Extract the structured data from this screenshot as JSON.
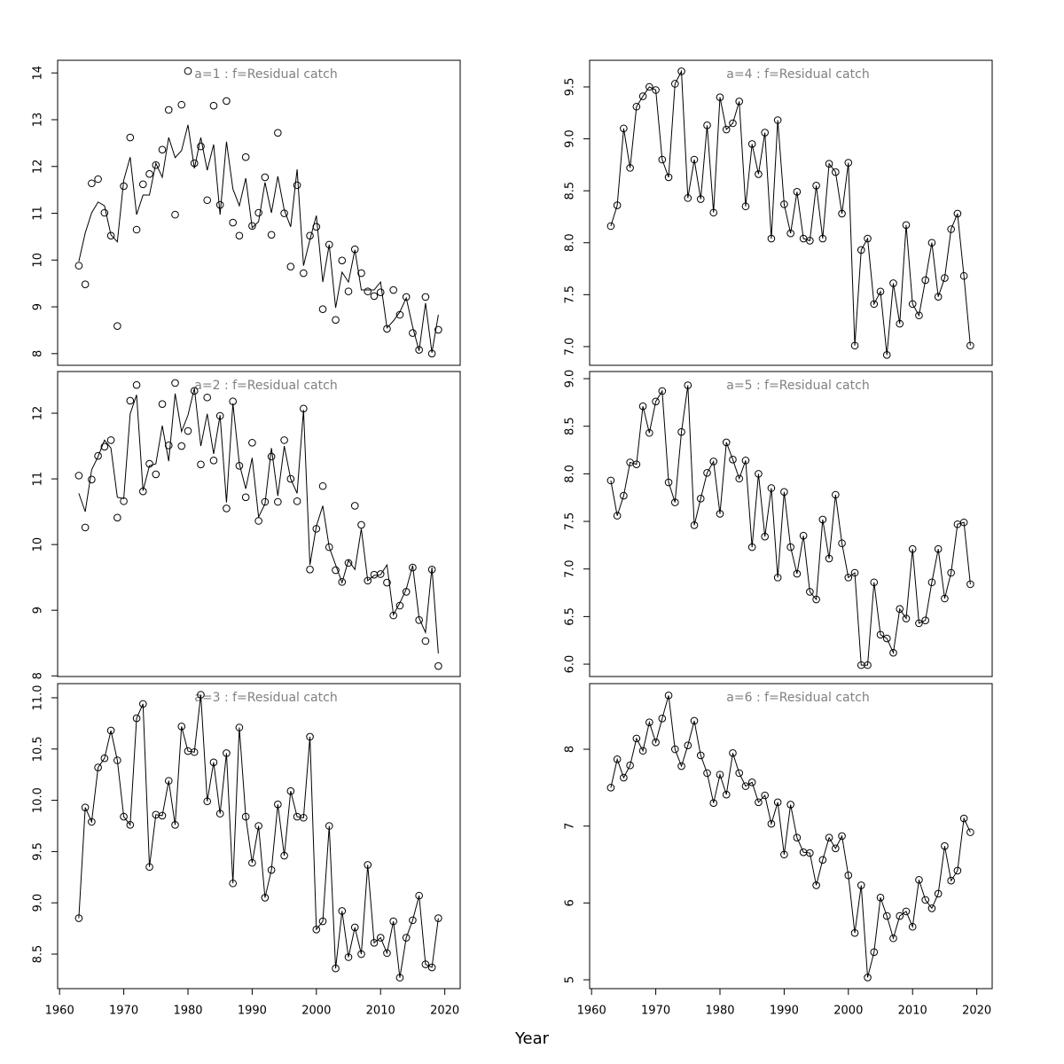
{
  "xlabel": "Year",
  "chart_data": [
    {
      "type": "line",
      "title": "a=1 : f=Residual catch",
      "x": [
        1963,
        1964,
        1965,
        1966,
        1967,
        1968,
        1969,
        1970,
        1971,
        1972,
        1973,
        1974,
        1975,
        1976,
        1977,
        1978,
        1979,
        1980,
        1981,
        1982,
        1983,
        1984,
        1985,
        1986,
        1987,
        1988,
        1989,
        1990,
        1991,
        1992,
        1993,
        1994,
        1995,
        1996,
        1997,
        1998,
        1999,
        2000,
        2001,
        2002,
        2003,
        2004,
        2005,
        2006,
        2007,
        2008,
        2009,
        2010,
        2011,
        2012,
        2013,
        2014,
        2015,
        2016,
        2017,
        2018,
        2019
      ],
      "xlim": [
        1959.7,
        2022.4
      ],
      "ylim": [
        7.75,
        14.27
      ],
      "yticks": [
        8,
        9,
        10,
        11,
        12,
        13,
        14
      ],
      "series": [
        {
          "color": "#000000",
          "points": true,
          "line": false,
          "values": [
            9.88,
            9.48,
            11.64,
            11.73,
            11.01,
            10.52,
            8.59,
            11.58,
            12.62,
            10.65,
            11.62,
            11.84,
            12.03,
            12.36,
            13.21,
            10.97,
            13.32,
            14.04,
            12.07,
            12.43,
            11.28,
            13.3,
            11.18,
            13.4,
            10.8,
            10.52,
            12.2,
            10.73,
            11.01,
            11.77,
            10.54,
            12.72,
            11.0,
            9.86,
            11.6,
            9.72,
            10.52,
            10.71,
            8.95,
            10.33,
            8.72,
            9.99,
            9.33,
            10.23,
            9.72,
            9.33,
            9.23,
            9.31,
            8.53,
            9.36,
            8.83,
            9.21,
            8.44,
            8.08,
            9.21,
            8.0,
            8.51
          ]
        },
        {
          "color": "#000000",
          "points": false,
          "line": true,
          "values": [
            9.97,
            10.58,
            11.01,
            11.24,
            11.16,
            10.54,
            10.39,
            11.71,
            12.2,
            10.97,
            11.39,
            11.39,
            12.07,
            11.77,
            12.62,
            12.19,
            12.34,
            12.89,
            11.96,
            12.62,
            11.92,
            12.47,
            10.97,
            12.53,
            11.52,
            11.16,
            11.75,
            10.69,
            10.82,
            11.66,
            11.01,
            11.79,
            11.07,
            10.71,
            11.94,
            9.88,
            10.44,
            10.95,
            9.53,
            10.33,
            8.98,
            9.74,
            9.53,
            10.22,
            9.36,
            9.36,
            9.36,
            9.53,
            8.55,
            8.7,
            8.89,
            9.19,
            8.57,
            8.06,
            9.08,
            8.02,
            8.83
          ]
        }
      ]
    },
    {
      "type": "line",
      "title": "a=2 : f=Residual catch",
      "x": [
        1963,
        1964,
        1965,
        1966,
        1967,
        1968,
        1969,
        1970,
        1971,
        1972,
        1973,
        1974,
        1975,
        1976,
        1977,
        1978,
        1979,
        1980,
        1981,
        1982,
        1983,
        1984,
        1985,
        1986,
        1987,
        1988,
        1989,
        1990,
        1991,
        1992,
        1993,
        1994,
        1995,
        1996,
        1997,
        1998,
        1999,
        2000,
        2001,
        2002,
        2003,
        2004,
        2005,
        2006,
        2007,
        2008,
        2009,
        2010,
        2011,
        2012,
        2013,
        2014,
        2015,
        2016,
        2017,
        2018,
        2019
      ],
      "xlim": [
        1959.7,
        2022.4
      ],
      "ylim": [
        7.99,
        12.635
      ],
      "yticks": [
        8,
        9,
        10,
        11,
        12
      ],
      "series": [
        {
          "color": "#000000",
          "points": true,
          "line": false,
          "values": [
            11.05,
            10.26,
            10.99,
            11.35,
            11.49,
            11.59,
            10.41,
            10.66,
            12.19,
            12.43,
            10.81,
            11.23,
            11.07,
            12.14,
            11.51,
            12.46,
            11.5,
            11.73,
            12.34,
            11.22,
            12.24,
            11.28,
            11.96,
            10.55,
            12.18,
            11.2,
            10.72,
            11.55,
            10.36,
            10.65,
            11.34,
            10.65,
            11.59,
            11.0,
            10.66,
            12.07,
            9.62,
            10.24,
            10.89,
            9.96,
            9.61,
            9.43,
            9.72,
            10.59,
            10.3,
            9.45,
            9.54,
            9.55,
            9.42,
            8.92,
            9.07,
            9.28,
            9.65,
            8.85,
            8.53,
            9.62,
            8.15
          ]
        },
        {
          "color": "#000000",
          "points": false,
          "line": true,
          "values": [
            10.78,
            10.5,
            11.14,
            11.34,
            11.59,
            11.47,
            10.72,
            10.7,
            11.99,
            12.28,
            10.82,
            11.2,
            11.23,
            11.81,
            11.27,
            12.3,
            11.72,
            11.97,
            12.38,
            11.5,
            11.99,
            11.38,
            11.97,
            10.64,
            12.15,
            11.23,
            10.85,
            11.32,
            10.42,
            10.62,
            11.47,
            10.74,
            11.5,
            11.0,
            10.78,
            12.05,
            9.69,
            10.28,
            10.59,
            9.96,
            9.69,
            9.42,
            9.76,
            9.62,
            10.24,
            9.45,
            9.53,
            9.54,
            9.69,
            8.93,
            9.11,
            9.32,
            9.68,
            8.88,
            8.66,
            9.65,
            8.34
          ]
        }
      ]
    },
    {
      "type": "line",
      "title": "a=3 : f=Residual catch",
      "x": [
        1963,
        1964,
        1965,
        1966,
        1967,
        1968,
        1969,
        1970,
        1971,
        1972,
        1973,
        1974,
        1975,
        1976,
        1977,
        1978,
        1979,
        1980,
        1981,
        1982,
        1983,
        1984,
        1985,
        1986,
        1987,
        1988,
        1989,
        1990,
        1991,
        1992,
        1993,
        1994,
        1995,
        1996,
        1997,
        1998,
        1999,
        2000,
        2001,
        2002,
        2003,
        2004,
        2005,
        2006,
        2007,
        2008,
        2009,
        2010,
        2011,
        2012,
        2013,
        2014,
        2015,
        2016,
        2017,
        2018,
        2019
      ],
      "xlim": [
        1959.7,
        2022.4
      ],
      "xticks": [
        1960,
        1970,
        1980,
        1990,
        2000,
        2010,
        2020
      ],
      "ylim": [
        8.163,
        11.138
      ],
      "yticks": [
        8.5,
        {
          "value": 9,
          "label": "9.0"
        },
        9.5,
        {
          "value": 10,
          "label": "10.0"
        },
        10.5,
        {
          "value": 11,
          "label": "11.0"
        }
      ],
      "series": [
        {
          "color": "#000000",
          "points": true,
          "line": true,
          "values": [
            8.85,
            9.93,
            9.79,
            10.32,
            10.41,
            10.68,
            10.39,
            9.84,
            9.76,
            10.8,
            10.94,
            9.35,
            9.86,
            9.85,
            10.19,
            9.76,
            10.72,
            10.48,
            10.47,
            11.03,
            9.99,
            10.37,
            9.87,
            10.46,
            9.19,
            10.71,
            9.84,
            9.39,
            9.75,
            9.05,
            9.32,
            9.96,
            9.46,
            10.09,
            9.84,
            9.83,
            10.62,
            8.74,
            8.82,
            9.75,
            8.36,
            8.92,
            8.47,
            8.76,
            8.5,
            9.37,
            8.61,
            8.66,
            8.51,
            8.82,
            8.27,
            8.66,
            8.83,
            9.07,
            8.4,
            8.37,
            8.85
          ]
        }
      ]
    },
    {
      "type": "line",
      "title": "a=4 : f=Residual catch",
      "x": [
        1963,
        1964,
        1965,
        1966,
        1967,
        1968,
        1969,
        1970,
        1971,
        1972,
        1973,
        1974,
        1975,
        1976,
        1977,
        1978,
        1979,
        1980,
        1981,
        1982,
        1983,
        1984,
        1985,
        1986,
        1987,
        1988,
        1989,
        1990,
        1991,
        1992,
        1993,
        1994,
        1995,
        1996,
        1997,
        1998,
        1999,
        2000,
        2001,
        2002,
        2003,
        2004,
        2005,
        2006,
        2007,
        2008,
        2009,
        2010,
        2011,
        2012,
        2013,
        2014,
        2015,
        2016,
        2017,
        2018,
        2019
      ],
      "xlim": [
        1959.7,
        2022.4
      ],
      "ylim": [
        6.82,
        9.756
      ],
      "yticks": [
        {
          "value": 7,
          "label": "7.0"
        },
        7.5,
        {
          "value": 8,
          "label": "8.0"
        },
        8.5,
        {
          "value": 9,
          "label": "9.0"
        },
        9.5
      ],
      "series": [
        {
          "color": "#000000",
          "points": true,
          "line": true,
          "values": [
            8.16,
            8.36,
            9.1,
            8.72,
            9.31,
            9.41,
            9.5,
            9.47,
            8.8,
            8.63,
            9.53,
            9.65,
            8.43,
            8.8,
            8.42,
            9.13,
            8.29,
            9.4,
            9.09,
            9.15,
            9.36,
            8.35,
            8.95,
            8.66,
            9.06,
            8.04,
            9.18,
            8.37,
            8.09,
            8.49,
            8.04,
            8.02,
            8.55,
            8.04,
            8.76,
            8.68,
            8.28,
            8.77,
            7.01,
            7.93,
            8.04,
            7.41,
            7.53,
            6.92,
            7.61,
            7.22,
            8.17,
            7.41,
            7.3,
            7.64,
            8.0,
            7.48,
            7.66,
            8.13,
            8.28,
            7.68,
            7.01
          ]
        }
      ]
    },
    {
      "type": "line",
      "title": "a=5 : f=Residual catch",
      "x": [
        1963,
        1964,
        1965,
        1966,
        1967,
        1968,
        1969,
        1970,
        1971,
        1972,
        1973,
        1974,
        1975,
        1976,
        1977,
        1978,
        1979,
        1980,
        1981,
        1982,
        1983,
        1984,
        1985,
        1986,
        1987,
        1988,
        1989,
        1990,
        1991,
        1992,
        1993,
        1994,
        1995,
        1996,
        1997,
        1998,
        1999,
        2000,
        2001,
        2002,
        2003,
        2004,
        2005,
        2006,
        2007,
        2008,
        2009,
        2010,
        2011,
        2012,
        2013,
        2014,
        2015,
        2016,
        2017,
        2018,
        2019
      ],
      "xlim": [
        1959.7,
        2022.4
      ],
      "ylim": [
        5.87,
        9.075
      ],
      "yticks": [
        {
          "value": 6,
          "label": "6.0"
        },
        6.5,
        {
          "value": 7,
          "label": "7.0"
        },
        7.5,
        {
          "value": 8,
          "label": "8.0"
        },
        8.5,
        {
          "value": 9,
          "label": "9.0"
        }
      ],
      "series": [
        {
          "color": "#000000",
          "points": true,
          "line": true,
          "values": [
            7.93,
            7.56,
            7.77,
            8.12,
            8.1,
            8.71,
            8.43,
            8.76,
            8.87,
            7.91,
            7.7,
            8.44,
            8.93,
            7.46,
            7.74,
            8.01,
            8.13,
            7.58,
            8.33,
            8.15,
            7.95,
            8.14,
            7.23,
            8.0,
            7.34,
            7.85,
            6.91,
            7.81,
            7.23,
            6.95,
            7.35,
            6.76,
            6.68,
            7.52,
            7.11,
            7.78,
            7.27,
            6.91,
            6.96,
            5.99,
            5.99,
            6.86,
            6.31,
            6.27,
            6.12,
            6.58,
            6.48,
            7.21,
            6.43,
            6.46,
            6.86,
            7.21,
            6.69,
            6.96,
            7.47,
            7.49,
            6.84
          ]
        }
      ]
    },
    {
      "type": "line",
      "title": "a=6 : f=Residual catch",
      "x": [
        1963,
        1964,
        1965,
        1966,
        1967,
        1968,
        1969,
        1970,
        1971,
        1972,
        1973,
        1974,
        1975,
        1976,
        1977,
        1978,
        1979,
        1980,
        1981,
        1982,
        1983,
        1984,
        1985,
        1986,
        1987,
        1988,
        1989,
        1990,
        1991,
        1992,
        1993,
        1994,
        1995,
        1996,
        1997,
        1998,
        1999,
        2000,
        2001,
        2002,
        2003,
        2004,
        2005,
        2006,
        2007,
        2008,
        2009,
        2010,
        2011,
        2012,
        2013,
        2014,
        2015,
        2016,
        2017,
        2018,
        2019
      ],
      "xlim": [
        1959.7,
        2022.4
      ],
      "xticks": [
        1960,
        1970,
        1980,
        1990,
        2000,
        2010,
        2020
      ],
      "ylim": [
        4.885,
        8.854
      ],
      "yticks": [
        5,
        6,
        7,
        8
      ],
      "series": [
        {
          "color": "#000000",
          "points": true,
          "line": true,
          "values": [
            7.5,
            7.87,
            7.63,
            7.79,
            8.14,
            7.98,
            8.35,
            8.09,
            8.4,
            8.7,
            8.0,
            7.78,
            8.05,
            8.37,
            7.92,
            7.69,
            7.3,
            7.67,
            7.41,
            7.95,
            7.69,
            7.52,
            7.57,
            7.31,
            7.4,
            7.03,
            7.31,
            6.63,
            7.28,
            6.85,
            6.66,
            6.65,
            6.23,
            6.56,
            6.85,
            6.71,
            6.87,
            6.36,
            5.61,
            6.23,
            5.03,
            5.36,
            6.07,
            5.83,
            5.54,
            5.83,
            5.89,
            5.69,
            6.3,
            6.04,
            5.93,
            6.12,
            6.74,
            6.29,
            6.42,
            7.1,
            6.92
          ]
        }
      ]
    }
  ]
}
